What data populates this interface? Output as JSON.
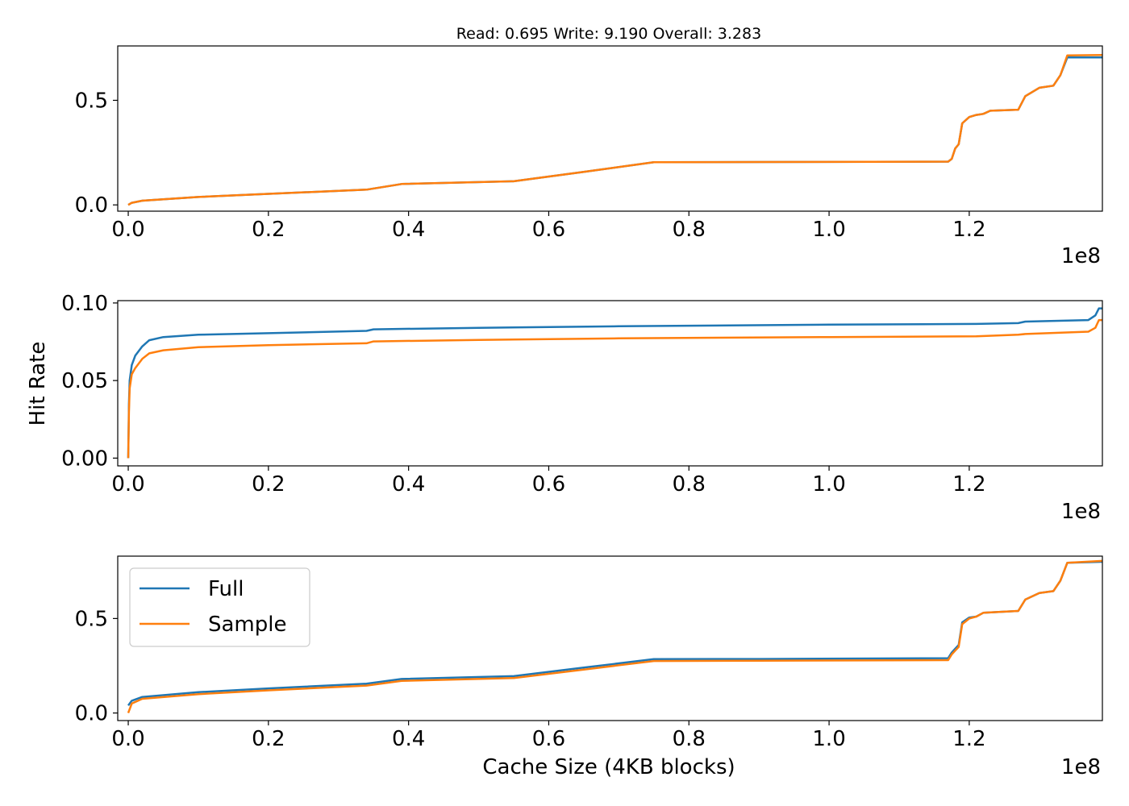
{
  "figure": {
    "title": "Read: 0.695 Write: 9.190 Overall: 3.283",
    "ylabel": "Hit Rate",
    "xlabel": "Cache Size (4KB blocks)",
    "x_exponent_label": "1e8"
  },
  "colors": {
    "full": "#1f77b4",
    "sample": "#ff7f0e",
    "axes": "#000000",
    "background": "#ffffff"
  },
  "legend": {
    "location": "upper-left",
    "panel": 3,
    "entries": [
      "Full",
      "Sample"
    ]
  },
  "chart_data": [
    {
      "type": "line",
      "panel": "top",
      "xlim": [
        -0.015,
        1.39
      ],
      "ylim": [
        -0.03,
        0.76
      ],
      "x_unit": "1e8 blocks",
      "x_ticks": [
        "0.0",
        "0.2",
        "0.4",
        "0.6",
        "0.8",
        "1.0",
        "1.2"
      ],
      "y_ticks": [
        "0.0",
        "0.5"
      ],
      "x_ticks_values": [
        0,
        0.2,
        0.4,
        0.6,
        0.8,
        1.0,
        1.2
      ],
      "y_ticks_values": [
        0,
        0.5
      ],
      "series": [
        {
          "name": "Full",
          "points": [
            [
              0,
              0.0
            ],
            [
              0.005,
              0.01
            ],
            [
              0.02,
              0.02
            ],
            [
              0.1,
              0.038
            ],
            [
              0.2,
              0.053
            ],
            [
              0.34,
              0.073
            ],
            [
              0.39,
              0.1
            ],
            [
              0.55,
              0.113
            ],
            [
              0.65,
              0.158
            ],
            [
              0.75,
              0.204
            ],
            [
              0.9,
              0.205
            ],
            [
              1.17,
              0.207
            ],
            [
              1.175,
              0.22
            ],
            [
              1.18,
              0.27
            ],
            [
              1.185,
              0.29
            ],
            [
              1.19,
              0.39
            ],
            [
              1.2,
              0.42
            ],
            [
              1.21,
              0.43
            ],
            [
              1.22,
              0.435
            ],
            [
              1.23,
              0.45
            ],
            [
              1.27,
              0.455
            ],
            [
              1.28,
              0.52
            ],
            [
              1.3,
              0.56
            ],
            [
              1.32,
              0.57
            ],
            [
              1.33,
              0.62
            ],
            [
              1.34,
              0.705
            ],
            [
              1.39,
              0.705
            ]
          ]
        },
        {
          "name": "Sample",
          "points": [
            [
              0,
              0.0
            ],
            [
              0.005,
              0.01
            ],
            [
              0.02,
              0.02
            ],
            [
              0.1,
              0.038
            ],
            [
              0.2,
              0.053
            ],
            [
              0.34,
              0.073
            ],
            [
              0.39,
              0.1
            ],
            [
              0.55,
              0.113
            ],
            [
              0.65,
              0.158
            ],
            [
              0.75,
              0.204
            ],
            [
              0.9,
              0.205
            ],
            [
              1.17,
              0.207
            ],
            [
              1.175,
              0.22
            ],
            [
              1.18,
              0.27
            ],
            [
              1.185,
              0.29
            ],
            [
              1.19,
              0.39
            ],
            [
              1.2,
              0.42
            ],
            [
              1.21,
              0.43
            ],
            [
              1.22,
              0.435
            ],
            [
              1.23,
              0.45
            ],
            [
              1.27,
              0.455
            ],
            [
              1.28,
              0.52
            ],
            [
              1.3,
              0.56
            ],
            [
              1.32,
              0.57
            ],
            [
              1.33,
              0.62
            ],
            [
              1.34,
              0.715
            ],
            [
              1.39,
              0.717
            ]
          ]
        }
      ]
    },
    {
      "type": "line",
      "panel": "middle",
      "xlim": [
        -0.015,
        1.39
      ],
      "ylim": [
        -0.005,
        0.1015
      ],
      "x_unit": "1e8 blocks",
      "x_ticks": [
        "0.0",
        "0.2",
        "0.4",
        "0.6",
        "0.8",
        "1.0",
        "1.2"
      ],
      "y_ticks": [
        "0.00",
        "0.05",
        "0.10"
      ],
      "x_ticks_values": [
        0,
        0.2,
        0.4,
        0.6,
        0.8,
        1.0,
        1.2
      ],
      "y_ticks_values": [
        0,
        0.05,
        0.1
      ],
      "series": [
        {
          "name": "Full",
          "points": [
            [
              0,
              0.0
            ],
            [
              0.001,
              0.035
            ],
            [
              0.002,
              0.05
            ],
            [
              0.005,
              0.06
            ],
            [
              0.01,
              0.066
            ],
            [
              0.02,
              0.072
            ],
            [
              0.03,
              0.076
            ],
            [
              0.05,
              0.078
            ],
            [
              0.1,
              0.0795
            ],
            [
              0.2,
              0.0805
            ],
            [
              0.34,
              0.082
            ],
            [
              0.35,
              0.083
            ],
            [
              0.5,
              0.084
            ],
            [
              0.7,
              0.085
            ],
            [
              1.0,
              0.086
            ],
            [
              1.21,
              0.0865
            ],
            [
              1.27,
              0.087
            ],
            [
              1.28,
              0.088
            ],
            [
              1.37,
              0.089
            ],
            [
              1.38,
              0.092
            ],
            [
              1.385,
              0.0965
            ],
            [
              1.39,
              0.0965
            ]
          ]
        },
        {
          "name": "Sample",
          "points": [
            [
              0,
              0.0
            ],
            [
              0.001,
              0.03
            ],
            [
              0.002,
              0.045
            ],
            [
              0.005,
              0.054
            ],
            [
              0.01,
              0.058
            ],
            [
              0.02,
              0.064
            ],
            [
              0.03,
              0.0675
            ],
            [
              0.05,
              0.0695
            ],
            [
              0.1,
              0.0715
            ],
            [
              0.2,
              0.0728
            ],
            [
              0.34,
              0.074
            ],
            [
              0.35,
              0.0752
            ],
            [
              0.5,
              0.0762
            ],
            [
              0.7,
              0.0772
            ],
            [
              1.0,
              0.078
            ],
            [
              1.21,
              0.0785
            ],
            [
              1.27,
              0.0795
            ],
            [
              1.28,
              0.08
            ],
            [
              1.37,
              0.0815
            ],
            [
              1.38,
              0.084
            ],
            [
              1.385,
              0.089
            ],
            [
              1.39,
              0.089
            ]
          ]
        }
      ]
    },
    {
      "type": "line",
      "panel": "bottom",
      "xlim": [
        -0.015,
        1.39
      ],
      "ylim": [
        -0.04,
        0.83
      ],
      "x_unit": "1e8 blocks",
      "x_ticks": [
        "0.0",
        "0.2",
        "0.4",
        "0.6",
        "0.8",
        "1.0",
        "1.2"
      ],
      "y_ticks": [
        "0.0",
        "0.5"
      ],
      "x_ticks_values": [
        0,
        0.2,
        0.4,
        0.6,
        0.8,
        1.0,
        1.2
      ],
      "y_ticks_values": [
        0,
        0.5
      ],
      "series": [
        {
          "name": "Full",
          "points": [
            [
              0,
              0.04
            ],
            [
              0.005,
              0.065
            ],
            [
              0.02,
              0.085
            ],
            [
              0.1,
              0.11
            ],
            [
              0.2,
              0.13
            ],
            [
              0.34,
              0.155
            ],
            [
              0.39,
              0.18
            ],
            [
              0.55,
              0.195
            ],
            [
              0.65,
              0.24
            ],
            [
              0.75,
              0.285
            ],
            [
              0.9,
              0.286
            ],
            [
              1.17,
              0.29
            ],
            [
              1.175,
              0.32
            ],
            [
              1.18,
              0.34
            ],
            [
              1.185,
              0.36
            ],
            [
              1.19,
              0.48
            ],
            [
              1.2,
              0.505
            ],
            [
              1.21,
              0.51
            ],
            [
              1.22,
              0.53
            ],
            [
              1.27,
              0.54
            ],
            [
              1.28,
              0.6
            ],
            [
              1.3,
              0.635
            ],
            [
              1.32,
              0.645
            ],
            [
              1.33,
              0.7
            ],
            [
              1.34,
              0.795
            ],
            [
              1.39,
              0.8
            ]
          ]
        },
        {
          "name": "Sample",
          "points": [
            [
              0,
              0.0
            ],
            [
              0.005,
              0.05
            ],
            [
              0.02,
              0.075
            ],
            [
              0.1,
              0.1
            ],
            [
              0.2,
              0.12
            ],
            [
              0.34,
              0.145
            ],
            [
              0.39,
              0.17
            ],
            [
              0.55,
              0.185
            ],
            [
              0.65,
              0.23
            ],
            [
              0.75,
              0.275
            ],
            [
              0.9,
              0.277
            ],
            [
              1.17,
              0.28
            ],
            [
              1.175,
              0.31
            ],
            [
              1.18,
              0.33
            ],
            [
              1.185,
              0.35
            ],
            [
              1.19,
              0.47
            ],
            [
              1.2,
              0.5
            ],
            [
              1.21,
              0.51
            ],
            [
              1.22,
              0.53
            ],
            [
              1.27,
              0.54
            ],
            [
              1.28,
              0.6
            ],
            [
              1.3,
              0.635
            ],
            [
              1.32,
              0.645
            ],
            [
              1.33,
              0.7
            ],
            [
              1.34,
              0.795
            ],
            [
              1.39,
              0.805
            ]
          ]
        }
      ]
    }
  ]
}
